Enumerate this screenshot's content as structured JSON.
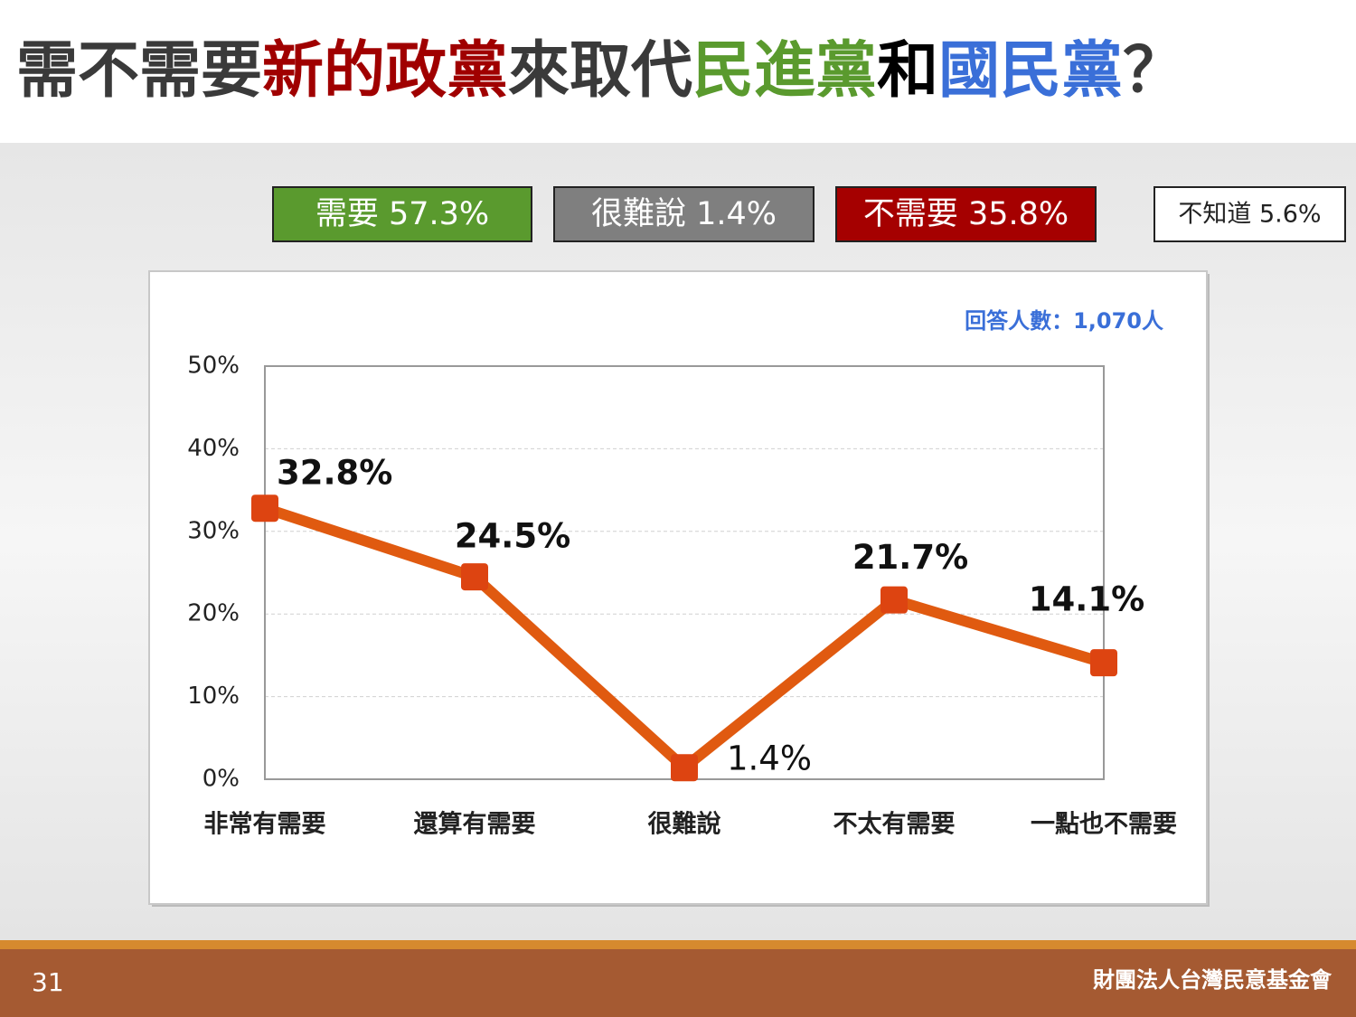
{
  "title_parts": [
    {
      "text": "需不需要",
      "color": "#3a3a3a"
    },
    {
      "text": "新的政黨",
      "color": "#a00000"
    },
    {
      "text": "來取代",
      "color": "#3a3a3a"
    },
    {
      "text": "民進黨",
      "color": "#5a9a2e"
    },
    {
      "text": "和",
      "color": "#000000"
    },
    {
      "text": "國民黨",
      "color": "#3a6fd8"
    },
    {
      "text": "？",
      "color": "#3a3a3a"
    }
  ],
  "summary": [
    {
      "text": "需要 57.3%",
      "color": "#5a9a2e",
      "text_color": "#ffffff"
    },
    {
      "text": "很難說 1.4%",
      "color": "#7f7f7f",
      "text_color": "#ffffff"
    },
    {
      "text": "不需要 35.8%",
      "color": "#a50000",
      "text_color": "#ffffff"
    },
    {
      "text": "不知道 5.6%",
      "color": "#ffffff",
      "text_color": "#222222"
    }
  ],
  "chart_data": {
    "type": "line",
    "note": "回答人數：1,070人",
    "categories": [
      "非常有需要",
      "還算有需要",
      "很難說",
      "不太有需要",
      "一點也不需要"
    ],
    "values": [
      32.8,
      24.5,
      1.4,
      21.7,
      14.1
    ],
    "value_labels": [
      "32.8%",
      "24.5%",
      "1.4%",
      "21.7%",
      "14.1%"
    ],
    "color": "#e05a10",
    "marker_color": "#dd4411",
    "ylim": [
      0,
      50
    ],
    "yticks": [
      {
        "value": 0,
        "label": "0%"
      },
      {
        "value": 10,
        "label": "10%"
      },
      {
        "value": 20,
        "label": "20%"
      },
      {
        "value": 30,
        "label": "30%"
      },
      {
        "value": 40,
        "label": "40%"
      },
      {
        "value": 50,
        "label": "50%"
      }
    ],
    "grid": true
  },
  "footer": {
    "page": "31",
    "organization": "財團法人台灣民意基金會"
  }
}
